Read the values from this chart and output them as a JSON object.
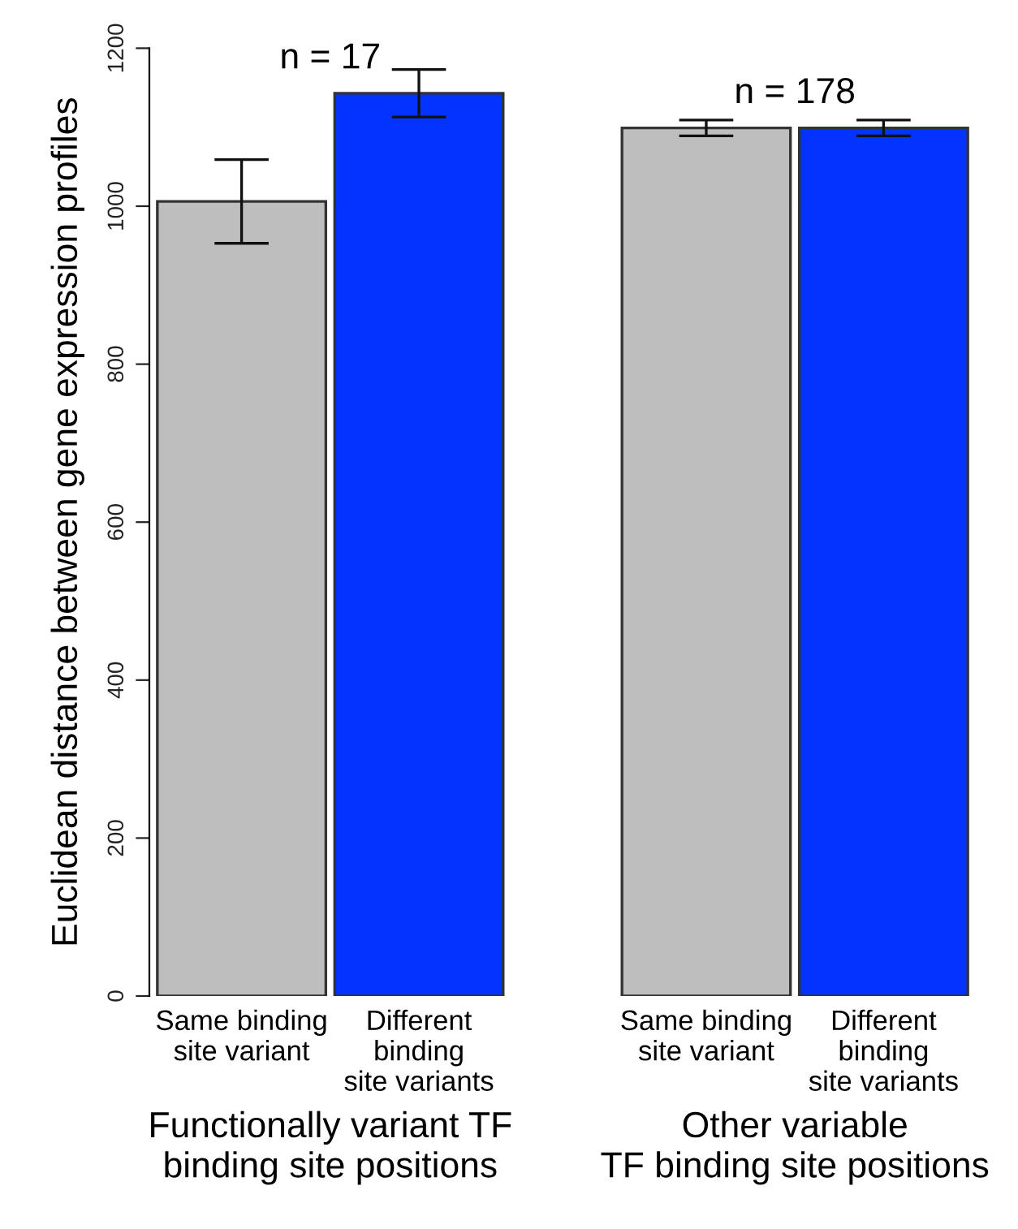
{
  "chart_data": {
    "type": "bar",
    "ylabel": "Euclidean distance between gene expression profiles",
    "categories": [
      "Same binding\nsite variant",
      "Different\nbinding\nsite variants",
      "Same binding\nsite variant",
      "Different\nbinding\nsite variants"
    ],
    "values": [
      1006,
      1143,
      1099,
      1099
    ],
    "errors": [
      53,
      30,
      10,
      10
    ],
    "colors": [
      "#bebebe",
      "#0433ff",
      "#bebebe",
      "#0433ff"
    ],
    "ylim": [
      0,
      1200
    ],
    "yticks": [
      0,
      200,
      400,
      600,
      800,
      1000,
      1200
    ],
    "annotations": [
      "n = 17",
      "n = 178",
      "Functionally variant TF\nbinding site positions",
      "Other variable\nTF binding site positions"
    ]
  }
}
